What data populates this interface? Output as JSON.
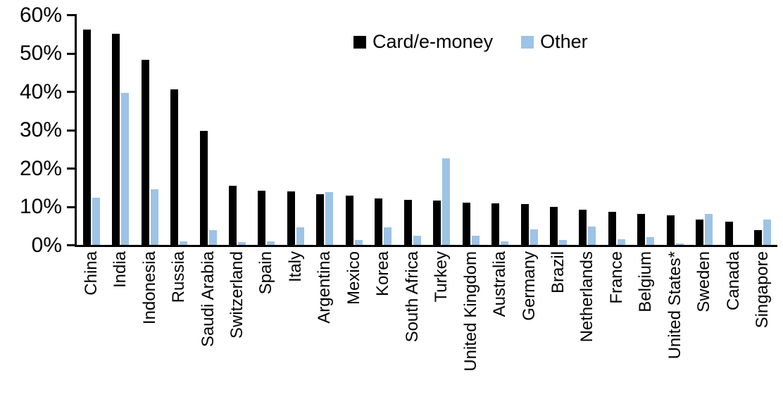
{
  "chart_data": {
    "type": "bar",
    "title": "",
    "xlabel": "",
    "ylabel": "",
    "ylim": [
      0,
      60
    ],
    "grid": false,
    "legend_position": "top-center",
    "yticks": [
      {
        "value": 0,
        "label": "0%"
      },
      {
        "value": 10,
        "label": "10%"
      },
      {
        "value": 20,
        "label": "20%"
      },
      {
        "value": 30,
        "label": "30%"
      },
      {
        "value": 40,
        "label": "40%"
      },
      {
        "value": 50,
        "label": "50%"
      },
      {
        "value": 60,
        "label": "60%"
      }
    ],
    "categories": [
      "China",
      "India",
      "Indonesia",
      "Russia",
      "Saudi Arabia",
      "Switzerland",
      "Spain",
      "Italy",
      "Argentina",
      "Mexico",
      "Korea",
      "South Africa",
      "Turkey",
      "United Kingdom",
      "Australia",
      "Germany",
      "Brazil",
      "Netherlands",
      "France",
      "Belgium",
      "United States*",
      "Sweden",
      "Canada",
      "Singapore"
    ],
    "series": [
      {
        "name": "Card/e-money",
        "color": "#000000",
        "values": [
          56.2,
          55.0,
          48.2,
          40.5,
          29.8,
          15.5,
          14.1,
          14.0,
          13.3,
          12.9,
          12.2,
          11.7,
          11.6,
          11.0,
          10.8,
          10.6,
          9.9,
          9.2,
          8.6,
          8.1,
          7.8,
          6.6,
          6.0,
          3.8
        ]
      },
      {
        "name": "Other",
        "color": "#9DC3E6",
        "values": [
          12.3,
          39.7,
          14.5,
          0.9,
          3.8,
          0.7,
          1.0,
          4.6,
          13.7,
          1.3,
          4.5,
          2.4,
          22.5,
          2.3,
          1.0,
          4.0,
          1.2,
          4.8,
          1.5,
          2.1,
          0.3,
          8.0,
          0.0,
          6.6
        ]
      }
    ]
  }
}
